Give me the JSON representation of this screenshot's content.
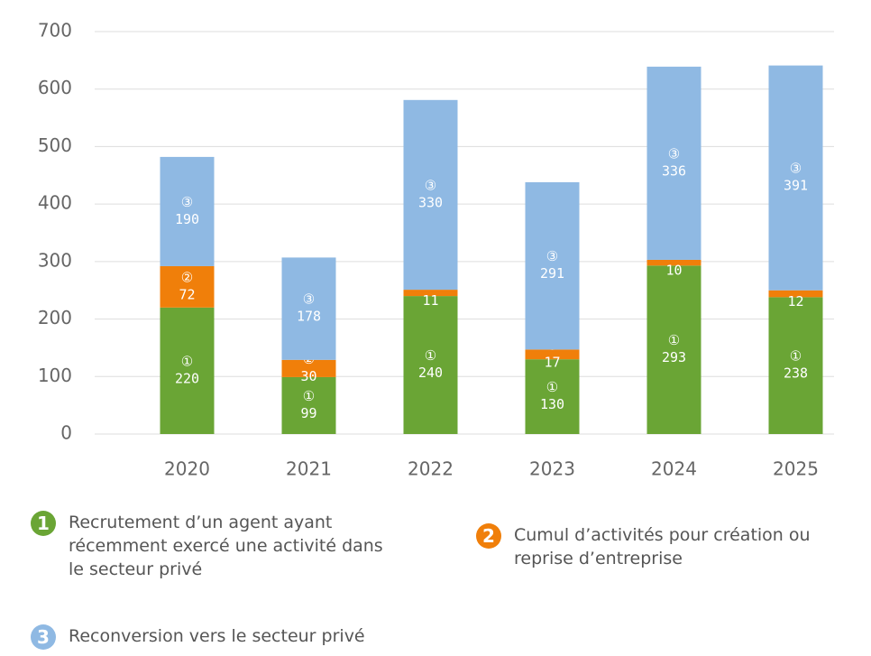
{
  "chart_data": {
    "type": "stacked_bar",
    "categories": [
      "2020",
      "2021",
      "2022",
      "2023",
      "2024",
      "2025"
    ],
    "series": [
      {
        "name": "Recrutement d’un agent ayant récemment exercé une activité dans le secteur privé",
        "symbol": "①",
        "legend_number": "1",
        "color": "#6aa535",
        "values": [
          220,
          99,
          240,
          130,
          293,
          238
        ]
      },
      {
        "name": "Cumul d’activités pour création ou reprise d’entreprise",
        "symbol": "②",
        "legend_number": "2",
        "color": "#f07f0a",
        "values": [
          72,
          30,
          11,
          17,
          10,
          12
        ]
      },
      {
        "name": "Reconversion vers le secteur privé",
        "symbol": "③",
        "legend_number": "3",
        "color": "#8fb9e3",
        "values": [
          190,
          178,
          330,
          291,
          336,
          391
        ]
      }
    ],
    "ylim": [
      0,
      700
    ],
    "yticks": [
      0,
      100,
      200,
      300,
      400,
      500,
      600,
      700
    ],
    "grid": true
  }
}
